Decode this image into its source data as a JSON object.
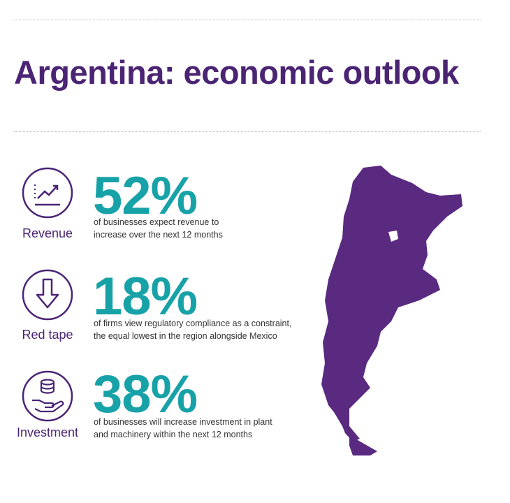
{
  "header": {
    "title": "Argentina: economic outlook"
  },
  "stats": [
    {
      "label": "Revenue",
      "value": "52%",
      "description": [
        "of businesses expect revenue to",
        "increase over the next 12 months"
      ]
    },
    {
      "label": "Red tape",
      "value": "18%",
      "description": [
        "of firms view regulatory compliance as a constraint,",
        "the equal lowest in the region alongside Mexico"
      ]
    },
    {
      "label": "Investment",
      "value": "38%",
      "description": [
        "of businesses will increase investment in plant",
        "and machinery within the next 12 months"
      ]
    }
  ]
}
